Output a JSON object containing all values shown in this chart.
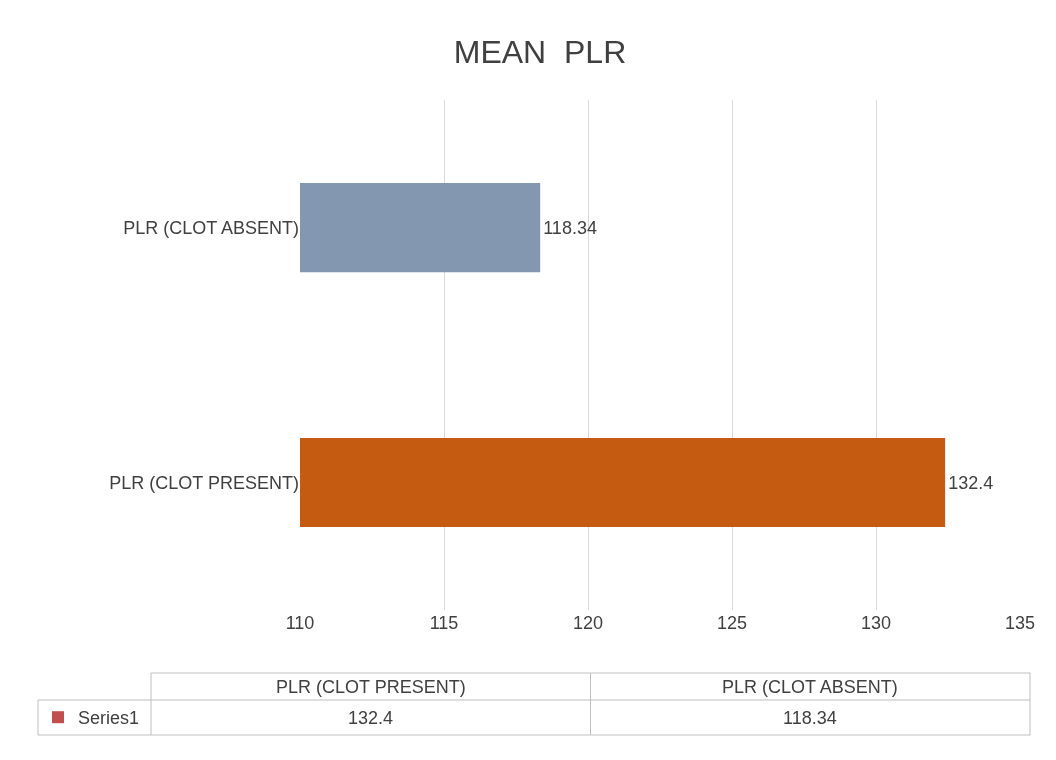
{
  "chart_data": {
    "type": "bar",
    "orientation": "horizontal",
    "title": "MEAN  PLR",
    "categories": [
      "PLR (CLOT ABSENT)",
      "PLR (CLOT PRESENT)"
    ],
    "series": [
      {
        "name": "Series1",
        "color": "#c0504d",
        "colors": [
          "#8497b0",
          "#c55a11"
        ],
        "values": [
          118.34,
          132.4
        ]
      }
    ],
    "annotations": [
      "132.4",
      "118.34"
    ],
    "xlim": [
      110,
      135
    ],
    "xticks": [
      110,
      115,
      120,
      125,
      130,
      135
    ],
    "grid": "x",
    "data_labels": true,
    "legend": "bottom left"
  }
}
